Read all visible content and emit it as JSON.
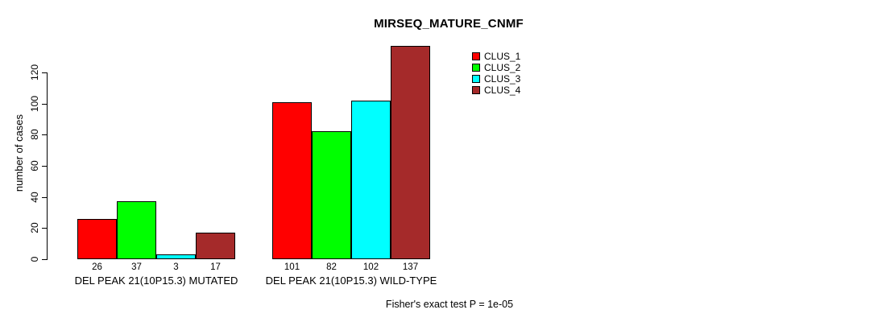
{
  "page": {
    "background": "#ffffff",
    "text_color": "#000000"
  },
  "chart_data": {
    "type": "bar",
    "title": "MIRSEQ_MATURE_CNMF",
    "ylabel": "number of cases",
    "xlabel": "",
    "categories": [
      "DEL PEAK 21(10P15.3) MUTATED",
      "DEL PEAK 21(10P15.3) WILD-TYPE"
    ],
    "series": [
      {
        "name": "CLUS_1",
        "color": "#FF0000",
        "values": [
          26,
          101
        ]
      },
      {
        "name": "CLUS_2",
        "color": "#00FF00",
        "values": [
          37,
          82
        ]
      },
      {
        "name": "CLUS_3",
        "color": "#00FFFF",
        "values": [
          3,
          102
        ]
      },
      {
        "name": "CLUS_4",
        "color": "#A52A2A",
        "values": [
          17,
          137
        ]
      }
    ],
    "yticks": [
      0,
      20,
      40,
      60,
      80,
      100,
      120
    ],
    "ylim": [
      0,
      137
    ],
    "bar_value_labels_shown": true,
    "grid": false,
    "legend_position": "top-right",
    "legend_entries": [
      "CLUS_1",
      "CLUS_2",
      "CLUS_3",
      "CLUS_4"
    ],
    "annotation": "Fisher's exact test P = 1e-05",
    "bar_border_color": "#000000"
  }
}
